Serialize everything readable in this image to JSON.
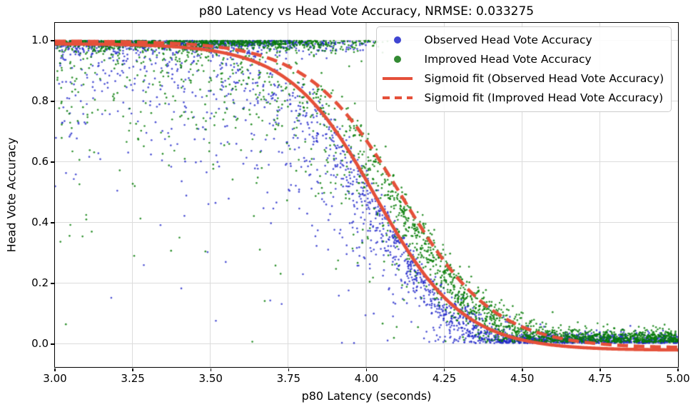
{
  "chart_data": {
    "type": "scatter",
    "title": "p80 Latency vs Head Vote Accuracy, NRMSE: 0.033275",
    "nrmse": 0.033275,
    "xlabel": "p80 Latency (seconds)",
    "ylabel": "Head Vote Accuracy",
    "xlim": [
      3.0,
      5.0
    ],
    "ylim": [
      -0.0753,
      1.0588
    ],
    "x_ticks": [
      "3.00",
      "3.25",
      "3.50",
      "3.75",
      "4.00",
      "4.25",
      "4.50",
      "4.75",
      "5.00"
    ],
    "x_tick_values": [
      3.0,
      3.25,
      3.5,
      3.75,
      4.0,
      4.25,
      4.5,
      4.75,
      5.0
    ],
    "y_ticks": [
      "0.0",
      "0.2",
      "0.4",
      "0.6",
      "0.8",
      "1.0"
    ],
    "y_tick_values": [
      0.0,
      0.2,
      0.4,
      0.6,
      0.8,
      1.0
    ],
    "grid": true,
    "grid_color": "#dcdcdc",
    "spine_color": "#000000",
    "text_color": "#000000",
    "legend_position": "upper right",
    "series": [
      {
        "id": "observed",
        "label": "Observed Head Vote Accuracy",
        "kind": "scatter",
        "color": "#2026c9",
        "alpha": 0.78,
        "radius": 1.35,
        "n": 3000,
        "seed": 1337421,
        "sigmoid": {
          "x0": 4.03,
          "k": 0.14,
          "A": 1.01,
          "c": -0.02
        },
        "noise": {
          "pin_base": 0.48,
          "pin_slope": 1.4,
          "pin_max": 0.8,
          "pin_decay": 0.015,
          "tail_mean": 0.17,
          "tail_bmin": 0.25,
          "jitter": 0.028,
          "floor": 0.003,
          "floor_spread": 0.015,
          "top_spread": 0.006
        }
      },
      {
        "id": "improved",
        "label": "Improved Head Vote Accuracy",
        "kind": "scatter",
        "color": "#067d06",
        "alpha": 0.82,
        "radius": 1.35,
        "n": 3000,
        "seed": 987654321,
        "sigmoid": {
          "x0": 4.11,
          "k": 0.15,
          "A": 1.012,
          "c": -0.013
        },
        "noise": {
          "pin_base": 0.5,
          "pin_slope": 1.45,
          "pin_max": 0.88,
          "pin_decay": 0.013,
          "tail_mean": 0.16,
          "tail_bmin": 0.25,
          "jitter": 0.028,
          "floor": 0.006,
          "floor_spread": 0.02,
          "top_spread": 0.006
        }
      },
      {
        "id": "fit-observed",
        "label": "Sigmoid fit (Observed Head Vote Accuracy)",
        "kind": "line",
        "style": "solid",
        "color": "#e5503a",
        "width": 4.6,
        "sigmoid": {
          "x0": 4.03,
          "k": 0.14,
          "A": 1.01,
          "c": -0.02
        }
      },
      {
        "id": "fit-improved",
        "label": "Sigmoid fit (Improved Head Vote Accuracy)",
        "kind": "line",
        "style": "dashed",
        "dash": [
          15,
          8
        ],
        "color": "#e5503a",
        "width": 4.6,
        "sigmoid": {
          "x0": 4.11,
          "k": 0.15,
          "A": 1.012,
          "c": -0.013
        }
      }
    ]
  },
  "legend": {
    "items": [
      {
        "label": "Observed Head Vote Accuracy",
        "marker": "dot",
        "color": "#4046d2"
      },
      {
        "label": "Improved Head Vote Accuracy",
        "marker": "dot",
        "color": "#338a33"
      },
      {
        "label": "Sigmoid fit (Observed Head Vote Accuracy)",
        "marker": "line",
        "color": "#e5503a"
      },
      {
        "label": "Sigmoid fit (Improved Head Vote Accuracy)",
        "marker": "dashed-line",
        "color": "#e5503a"
      }
    ]
  }
}
